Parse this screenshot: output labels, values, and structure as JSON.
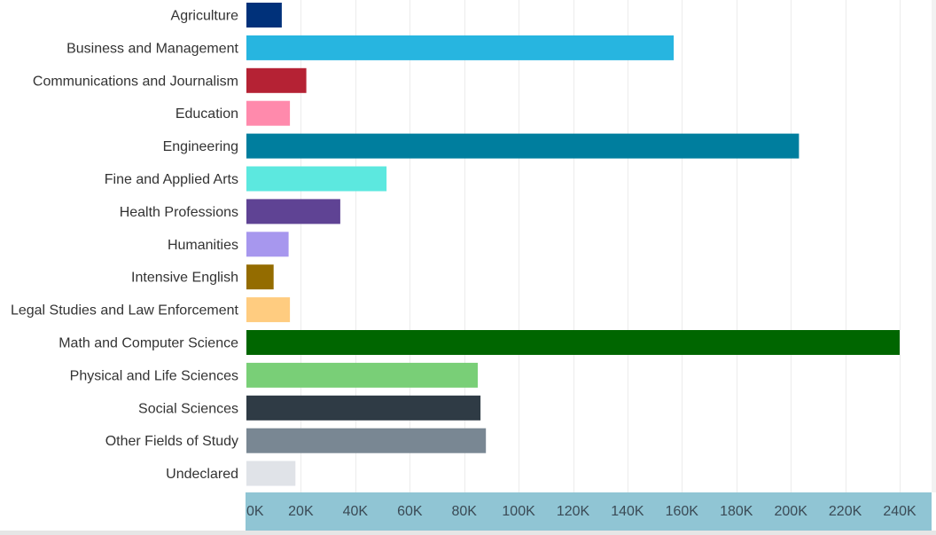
{
  "chart_data": {
    "type": "bar",
    "orientation": "horizontal",
    "title": "",
    "xlabel": "",
    "ylabel": "",
    "xlim": [
      0,
      240000
    ],
    "grid": true,
    "legend": "none",
    "categories": [
      "Agriculture",
      "Business and Management",
      "Communications and Journalism",
      "Education",
      "Engineering",
      "Fine and Applied Arts",
      "Health Professions",
      "Humanities",
      "Intensive English",
      "Legal Studies and Law Enforcement",
      "Math and Computer Science",
      "Physical and Life Sciences",
      "Social Sciences",
      "Other Fields of Study",
      "Undeclared"
    ],
    "values": [
      13000,
      157000,
      22000,
      16000,
      203000,
      51500,
      34500,
      15500,
      10000,
      16000,
      240000,
      85000,
      86000,
      88000,
      18000
    ],
    "colors": [
      "#00317a",
      "#27b5e0",
      "#b52234",
      "#ff8aac",
      "#007e9e",
      "#5ce8df",
      "#5f4394",
      "#a797ee",
      "#946c00",
      "#ffcc80",
      "#006600",
      "#79cf77",
      "#2f3b45",
      "#798793",
      "#e0e3e8"
    ],
    "x_ticks": [
      0,
      20000,
      40000,
      60000,
      80000,
      100000,
      120000,
      140000,
      160000,
      180000,
      200000,
      220000,
      240000
    ],
    "x_tick_labels": [
      "0K",
      "20K",
      "40K",
      "60K",
      "80K",
      "100K",
      "120K",
      "140K",
      "160K",
      "180K",
      "200K",
      "220K",
      "240K"
    ],
    "axis_band_color": "#90c5d4",
    "grid_color": "#ececec",
    "label_color": "#333333",
    "tick_color": "#3a4a55"
  }
}
